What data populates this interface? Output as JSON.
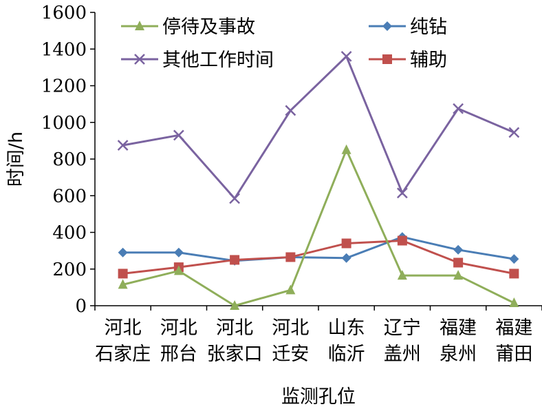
{
  "chart_data": {
    "type": "line",
    "categories": [
      [
        "河北",
        "石家庄"
      ],
      [
        "河北",
        "邢台"
      ],
      [
        "河北",
        "张家口"
      ],
      [
        "河北",
        "迁安"
      ],
      [
        "山东",
        "临沂"
      ],
      [
        "辽宁",
        "盖州"
      ],
      [
        "福建",
        "泉州"
      ],
      [
        "福建",
        "莆田"
      ]
    ],
    "series": [
      {
        "name": "停待及事故",
        "values": [
          115,
          190,
          0,
          85,
          850,
          165,
          165,
          15
        ],
        "color": "#8FAE5A",
        "marker": "triangle"
      },
      {
        "name": "纯钻",
        "values": [
          290,
          290,
          245,
          265,
          260,
          375,
          305,
          255
        ],
        "color": "#4A7DB5",
        "marker": "diamond"
      },
      {
        "name": "其他工作时间",
        "values": [
          875,
          930,
          585,
          1065,
          1360,
          615,
          1075,
          945
        ],
        "color": "#7A63A0",
        "marker": "x"
      },
      {
        "name": "辅助",
        "values": [
          175,
          210,
          250,
          265,
          340,
          355,
          235,
          175
        ],
        "color": "#C0504D",
        "marker": "square"
      }
    ],
    "xlabel": "监测孔位",
    "ylabel": "时间/h",
    "ylim": [
      0,
      1600
    ],
    "yticks": [
      0,
      200,
      400,
      600,
      800,
      1000,
      1200,
      1400,
      1600
    ],
    "legend": "top, inside plot, two columns",
    "grid": false
  }
}
